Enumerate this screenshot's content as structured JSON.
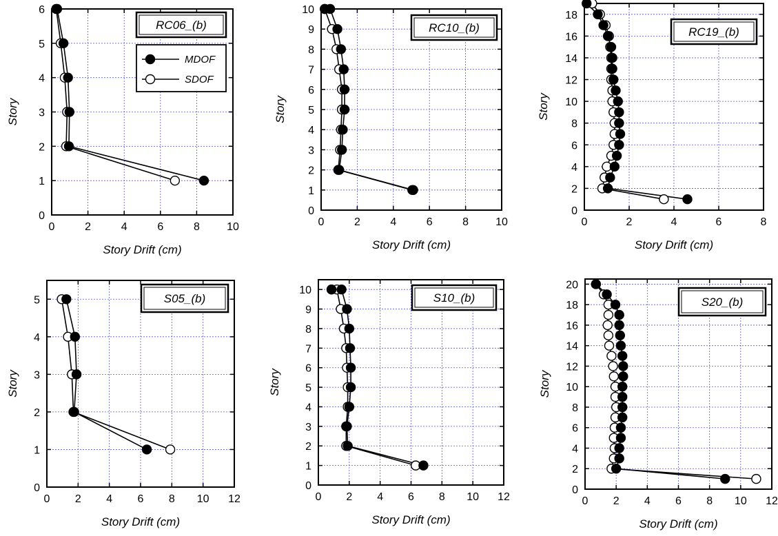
{
  "legend": {
    "mdof": "MDOF",
    "sdof": "SDOF"
  },
  "colors": {
    "grid": "#5a5ad6",
    "frame": "#000000",
    "mdof_fill": "#000000",
    "sdof_fill": "#ffffff"
  },
  "chart_data": [
    {
      "type": "line",
      "title": "RC06_(b)",
      "xlabel": "Story Drift (cm)",
      "ylabel": "Story",
      "xlim": [
        0,
        10
      ],
      "xstep": 2,
      "ylim": [
        0,
        6
      ],
      "ystep": 1,
      "legend_shown": true,
      "grid": true,
      "series": [
        {
          "name": "MDOF",
          "x": [
            8.4,
            0.95,
            0.98,
            0.9,
            0.65,
            0.3
          ],
          "y": [
            1,
            2,
            3,
            4,
            5,
            6
          ]
        },
        {
          "name": "SDOF",
          "x": [
            6.8,
            0.8,
            0.85,
            0.72,
            0.5,
            0.25
          ],
          "y": [
            1,
            2,
            3,
            4,
            5,
            6
          ]
        }
      ]
    },
    {
      "type": "line",
      "title": "RC10_(b)",
      "xlabel": "Story Drift (cm)",
      "ylabel": "Story",
      "xlim": [
        0,
        10
      ],
      "xstep": 2,
      "ylim": [
        0,
        10
      ],
      "ystep": 1,
      "legend_shown": false,
      "grid": true,
      "series": [
        {
          "name": "MDOF",
          "x": [
            5.1,
            1.0,
            1.15,
            1.2,
            1.3,
            1.3,
            1.25,
            1.1,
            0.9,
            0.5,
            0.2
          ],
          "y": [
            1,
            2,
            3,
            4,
            5,
            6,
            7,
            8,
            9,
            10,
            10
          ]
        },
        {
          "name": "SDOF",
          "x": [
            5.05,
            0.95,
            1.05,
            1.1,
            1.15,
            1.15,
            1.0,
            0.85,
            0.6,
            0.2
          ],
          "y": [
            1,
            2,
            3,
            4,
            5,
            6,
            7,
            8,
            9,
            10
          ]
        }
      ]
    },
    {
      "type": "line",
      "title": "RC19_(b)",
      "xlabel": "Story Drift (cm)",
      "ylabel": "Story",
      "xlim": [
        0,
        8
      ],
      "xstep": 2,
      "ylim": [
        0,
        19
      ],
      "ystep": 2,
      "legend_shown": false,
      "grid": true,
      "series": [
        {
          "name": "MDOF",
          "x": [
            4.6,
            1.05,
            1.15,
            1.35,
            1.45,
            1.55,
            1.6,
            1.55,
            1.55,
            1.5,
            1.4,
            1.3,
            1.25,
            1.25,
            1.2,
            1.05,
            0.85,
            0.6,
            0.1
          ],
          "y": [
            1,
            2,
            3,
            4,
            5,
            6,
            7,
            8,
            9,
            10,
            11,
            12,
            13,
            14,
            15,
            16,
            17,
            18,
            19
          ]
        },
        {
          "name": "SDOF",
          "x": [
            3.55,
            0.8,
            0.9,
            1.0,
            1.2,
            1.3,
            1.35,
            1.35,
            1.3,
            1.25,
            1.25,
            1.2,
            1.2,
            1.2,
            1.15,
            1.1,
            0.95,
            0.7,
            0.35
          ],
          "y": [
            1,
            2,
            3,
            4,
            5,
            6,
            7,
            8,
            9,
            10,
            11,
            12,
            13,
            14,
            15,
            16,
            17,
            18,
            19
          ]
        }
      ]
    },
    {
      "type": "line",
      "title": "S05_(b)",
      "xlabel": "Story Drift (cm)",
      "ylabel": "Story",
      "xlim": [
        0,
        12
      ],
      "xstep": 2,
      "ylim": [
        0,
        5.5
      ],
      "ystep": 1,
      "legend_shown": false,
      "grid": true,
      "series": [
        {
          "name": "MDOF",
          "x": [
            6.4,
            1.75,
            1.9,
            1.8,
            1.25
          ],
          "y": [
            1,
            2,
            3,
            4,
            5
          ]
        },
        {
          "name": "SDOF",
          "x": [
            7.9,
            1.7,
            1.6,
            1.35,
            0.95
          ],
          "y": [
            1,
            2,
            3,
            4,
            5
          ]
        }
      ]
    },
    {
      "type": "line",
      "title": "S10_(b)",
      "xlabel": "Story Drift (cm)",
      "ylabel": "Story",
      "xlim": [
        0,
        12
      ],
      "xstep": 2,
      "ylim": [
        0,
        10.5
      ],
      "ystep": 1,
      "legend_shown": false,
      "grid": true,
      "series": [
        {
          "name": "MDOF",
          "x": [
            6.8,
            1.9,
            1.85,
            2.0,
            2.1,
            2.1,
            2.05,
            2.0,
            1.85,
            1.5,
            0.85
          ],
          "y": [
            1,
            2,
            3,
            4,
            5,
            6,
            7,
            8,
            9,
            10,
            10
          ]
        },
        {
          "name": "SDOF",
          "x": [
            6.3,
            1.8,
            1.8,
            1.9,
            1.9,
            1.85,
            1.8,
            1.65,
            1.45,
            1.2,
            0.85
          ],
          "y": [
            1,
            2,
            3,
            4,
            5,
            6,
            7,
            8,
            9,
            10,
            10
          ]
        }
      ]
    },
    {
      "type": "line",
      "title": "S20_(b)",
      "xlabel": "Story Drift (cm)",
      "ylabel": "Story",
      "xlim": [
        0,
        12
      ],
      "xstep": 2,
      "ylim": [
        0,
        20.5
      ],
      "ystep": 2,
      "legend_shown": false,
      "grid": true,
      "series": [
        {
          "name": "MDOF",
          "x": [
            9.0,
            2.0,
            2.2,
            2.2,
            2.3,
            2.3,
            2.4,
            2.4,
            2.4,
            2.4,
            2.45,
            2.45,
            2.4,
            2.3,
            2.25,
            2.2,
            2.2,
            1.95,
            1.4,
            0.7
          ],
          "y": [
            1,
            2,
            3,
            4,
            5,
            6,
            7,
            8,
            9,
            10,
            11,
            12,
            13,
            14,
            15,
            16,
            17,
            18,
            19,
            20
          ]
        },
        {
          "name": "SDOF",
          "x": [
            11.0,
            1.7,
            1.85,
            1.9,
            1.85,
            1.9,
            1.95,
            2.0,
            1.95,
            1.95,
            1.85,
            1.8,
            1.7,
            1.55,
            1.5,
            1.45,
            1.5,
            1.5,
            1.2,
            0.7
          ],
          "y": [
            1,
            2,
            3,
            4,
            5,
            6,
            7,
            8,
            9,
            10,
            11,
            12,
            13,
            14,
            15,
            16,
            17,
            18,
            19,
            20
          ]
        }
      ]
    }
  ]
}
